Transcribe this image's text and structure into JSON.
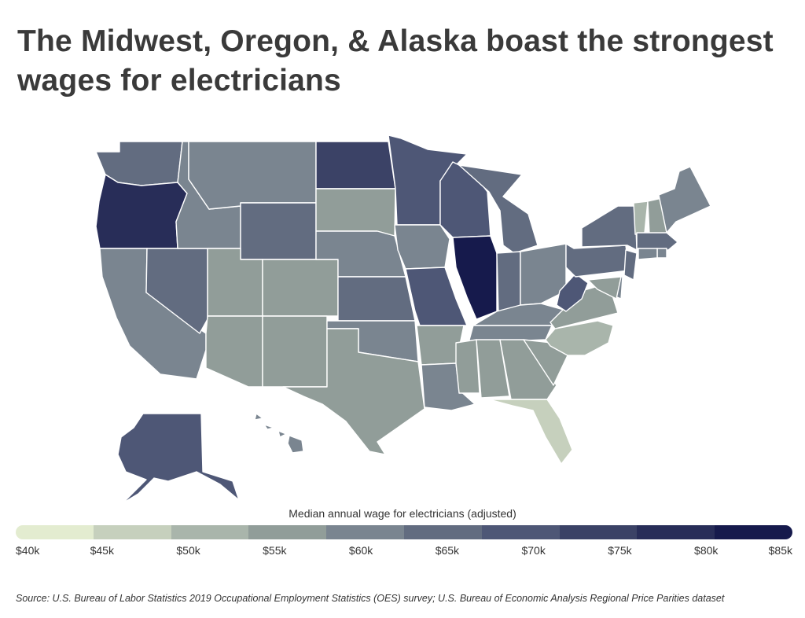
{
  "title": "The Midwest, Oregon, & Alaska boast the strongest wages for electricians",
  "legend": {
    "title": "Median annual wage for electricians (adjusted)",
    "ticks": [
      "$40k",
      "$45k",
      "$50k",
      "$55k",
      "$60k",
      "$65k",
      "$70k",
      "$75k",
      "$80k",
      "$85k"
    ],
    "colors": [
      "#e3ecd0",
      "#c6d0bd",
      "#a9b5ab",
      "#919d99",
      "#7a8590",
      "#626c80",
      "#4e5776",
      "#3b4266",
      "#282d58",
      "#161a4c"
    ]
  },
  "source": "Source:  U.S. Bureau of Labor Statistics 2019 Occupational Employment Statistics (OES) survey; U.S. Bureau of Economic Analysis Regional Price Parities dataset",
  "map_data": {
    "metric": "Median annual wage for electricians (adjusted)",
    "unit": "$k",
    "states": [
      {
        "id": "WA",
        "value": 63
      },
      {
        "id": "OR",
        "value": 79
      },
      {
        "id": "CA",
        "value": 59
      },
      {
        "id": "NV",
        "value": 63
      },
      {
        "id": "ID",
        "value": 58
      },
      {
        "id": "MT",
        "value": 62
      },
      {
        "id": "WY",
        "value": 63
      },
      {
        "id": "UT",
        "value": 55
      },
      {
        "id": "CO",
        "value": 55
      },
      {
        "id": "AZ",
        "value": 53
      },
      {
        "id": "NM",
        "value": 56
      },
      {
        "id": "ND",
        "value": 73
      },
      {
        "id": "SD",
        "value": 53
      },
      {
        "id": "NE",
        "value": 59
      },
      {
        "id": "KS",
        "value": 66
      },
      {
        "id": "OK",
        "value": 61
      },
      {
        "id": "TX",
        "value": 54
      },
      {
        "id": "MN",
        "value": 68
      },
      {
        "id": "IA",
        "value": 62
      },
      {
        "id": "MO",
        "value": 71
      },
      {
        "id": "AR",
        "value": 56
      },
      {
        "id": "LA",
        "value": 62
      },
      {
        "id": "WI",
        "value": 68
      },
      {
        "id": "IL",
        "value": 84
      },
      {
        "id": "MI",
        "value": 67
      },
      {
        "id": "IN",
        "value": 65
      },
      {
        "id": "OH",
        "value": 60
      },
      {
        "id": "KY",
        "value": 60
      },
      {
        "id": "TN",
        "value": 59
      },
      {
        "id": "MS",
        "value": 57
      },
      {
        "id": "AL",
        "value": 53
      },
      {
        "id": "GA",
        "value": 55
      },
      {
        "id": "FL",
        "value": 44
      },
      {
        "id": "SC",
        "value": 54
      },
      {
        "id": "NC",
        "value": 48
      },
      {
        "id": "VA",
        "value": 53
      },
      {
        "id": "WV",
        "value": 68
      },
      {
        "id": "PA",
        "value": 66
      },
      {
        "id": "NY",
        "value": 65
      },
      {
        "id": "VT",
        "value": 51
      },
      {
        "id": "NH",
        "value": 54
      },
      {
        "id": "ME",
        "value": 58
      },
      {
        "id": "MA",
        "value": 64
      },
      {
        "id": "RI",
        "value": 58
      },
      {
        "id": "CT",
        "value": 58
      },
      {
        "id": "NJ",
        "value": 64
      },
      {
        "id": "DE",
        "value": 58
      },
      {
        "id": "MD",
        "value": 56
      },
      {
        "id": "AK",
        "value": 70
      },
      {
        "id": "HI",
        "value": 62
      }
    ]
  }
}
